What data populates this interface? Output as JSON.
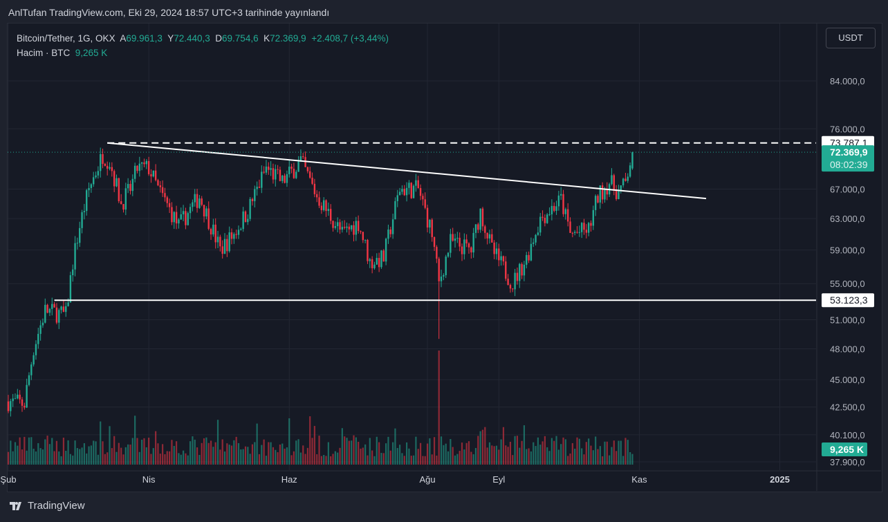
{
  "header": "AnlTufan TradingView.com, Eki 29, 2024 18:57 UTC+3 tarihinde yayınlandı",
  "legend": {
    "symbol": "Bitcoin/Tether, 1G, OKX",
    "o_label": "A",
    "o": "69.961,3",
    "h_label": "Y",
    "h": "72.440,3",
    "l_label": "D",
    "l": "69.754,6",
    "c_label": "K",
    "c": "72.369,9",
    "change": "+2.408,7 (+3,44%)",
    "vol_label": "Hacim · BTC",
    "vol": "9,265 K"
  },
  "currency_button": "USDT",
  "footer": "TradingView",
  "colors": {
    "up": "#22ab94",
    "down": "#f23645",
    "bg": "#161a25",
    "line": "#ffffff"
  },
  "chart_data": {
    "type": "candlestick",
    "scale": "log",
    "ylim": [
      37900,
      84000
    ],
    "y_ticks": [
      {
        "v": 84000,
        "t": "84.000,0"
      },
      {
        "v": 76000,
        "t": "76.000,0"
      },
      {
        "v": 67000,
        "t": "67.000,0"
      },
      {
        "v": 63000,
        "t": "63.000,0"
      },
      {
        "v": 59000,
        "t": "59.000,0"
      },
      {
        "v": 55000,
        "t": "55.000,0"
      },
      {
        "v": 51000,
        "t": "51.000,0"
      },
      {
        "v": 48000,
        "t": "48.000,0"
      },
      {
        "v": 45000,
        "t": "45.000,0"
      },
      {
        "v": 42500,
        "t": "42.500,0"
      },
      {
        "v": 40100,
        "t": "40.100,0"
      },
      {
        "v": 37900,
        "t": "37.900,0"
      }
    ],
    "x_ticks": [
      {
        "d": 0,
        "t": "Şub"
      },
      {
        "d": 61,
        "t": "Nis"
      },
      {
        "d": 122,
        "t": "Haz"
      },
      {
        "d": 182,
        "t": "Ağu"
      },
      {
        "d": 213,
        "t": "Eyl"
      },
      {
        "d": 274,
        "t": "Kas"
      },
      {
        "d": 335,
        "t": "2025"
      }
    ],
    "x_range_days": [
      0,
      350
    ],
    "close_path": [
      [
        0,
        43000
      ],
      [
        7,
        42800
      ],
      [
        11,
        48000
      ],
      [
        16,
        52000
      ],
      [
        25,
        51500
      ],
      [
        28,
        57500
      ],
      [
        31,
        62000
      ],
      [
        35,
        67000
      ],
      [
        41,
        72000
      ],
      [
        44,
        71000
      ],
      [
        49,
        65000
      ],
      [
        53,
        67000
      ],
      [
        56,
        70000
      ],
      [
        61,
        70000
      ],
      [
        65,
        67000
      ],
      [
        74,
        62000
      ],
      [
        83,
        66000
      ],
      [
        92,
        59000
      ],
      [
        98,
        61000
      ],
      [
        104,
        64000
      ],
      [
        112,
        70000
      ],
      [
        119,
        68000
      ],
      [
        127,
        71000
      ],
      [
        134,
        66000
      ],
      [
        145,
        61000
      ],
      [
        152,
        62500
      ],
      [
        157,
        57500
      ],
      [
        163,
        58000
      ],
      [
        170,
        67000
      ],
      [
        178,
        67000
      ],
      [
        184,
        61000
      ],
      [
        187,
        55000
      ],
      [
        192,
        60000
      ],
      [
        201,
        59000
      ],
      [
        205,
        64000
      ],
      [
        210,
        59000
      ],
      [
        219,
        55000
      ],
      [
        225,
        58000
      ],
      [
        231,
        63000
      ],
      [
        240,
        65500
      ],
      [
        244,
        61000
      ],
      [
        252,
        61500
      ],
      [
        256,
        66000
      ],
      [
        261,
        68000
      ],
      [
        265,
        66500
      ],
      [
        268,
        67800
      ],
      [
        271,
        72369.9
      ]
    ],
    "levels": [
      {
        "name": "resistance",
        "value": 73787.1,
        "label": "73.787,1",
        "style": "dashed",
        "from_day": 43
      },
      {
        "name": "support",
        "value": 53123.3,
        "label": "53.123,3",
        "style": "solid",
        "from_day": 20
      }
    ],
    "trendline": {
      "from": [
        43,
        73787.1
      ],
      "to": [
        303,
        65700
      ]
    },
    "last_price": {
      "label": "72.369,9",
      "countdown": "08:02:39"
    },
    "last_volume": "9,265 K"
  }
}
